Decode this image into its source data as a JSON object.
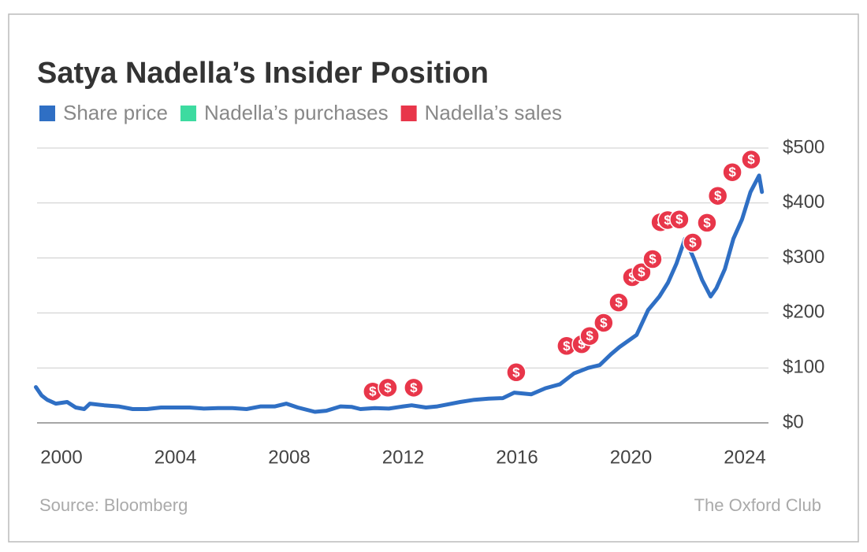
{
  "chart_data": {
    "type": "line",
    "title": "Satya Nadella’s Insider Position",
    "source": "Source: Bloomberg",
    "credit": "The Oxford Club",
    "xlim": [
      1999,
      2025
    ],
    "xticks": [
      2000,
      2004,
      2008,
      2012,
      2016,
      2020,
      2024
    ],
    "ylim": [
      0,
      500
    ],
    "yticks": [
      {
        "value": 0,
        "label": "$0"
      },
      {
        "value": 100,
        "label": "$100"
      },
      {
        "value": 200,
        "label": "$200"
      },
      {
        "value": 300,
        "label": "$300"
      },
      {
        "value": 400,
        "label": "$400"
      },
      {
        "value": 500,
        "label": "$500"
      }
    ],
    "grid": true,
    "series": [
      {
        "name": "Share price",
        "color": "#2f6fc4",
        "x": [
          1999.1,
          1999.3,
          1999.5,
          1999.8,
          2000.2,
          2000.5,
          2000.8,
          2001.0,
          2001.5,
          2002.0,
          2002.5,
          2003.0,
          2003.5,
          2004.0,
          2004.5,
          2005.0,
          2005.5,
          2006.0,
          2006.5,
          2007.0,
          2007.5,
          2007.9,
          2008.3,
          2008.9,
          2009.3,
          2009.8,
          2010.2,
          2010.5,
          2011.0,
          2011.5,
          2012.0,
          2012.3,
          2012.8,
          2013.2,
          2013.6,
          2014.0,
          2014.5,
          2015.0,
          2015.5,
          2015.9,
          2016.5,
          2017.0,
          2017.5,
          2018.0,
          2018.5,
          2018.9,
          2019.3,
          2019.6,
          2020.2,
          2020.6,
          2021.0,
          2021.3,
          2021.6,
          2021.9,
          2022.2,
          2022.5,
          2022.8,
          2023.0,
          2023.3,
          2023.6,
          2023.9,
          2024.2,
          2024.5,
          2024.6
        ],
        "values": [
          65,
          50,
          42,
          35,
          38,
          28,
          25,
          35,
          32,
          30,
          25,
          25,
          28,
          28,
          28,
          26,
          27,
          27,
          25,
          30,
          30,
          35,
          28,
          20,
          22,
          30,
          29,
          25,
          27,
          26,
          30,
          32,
          28,
          30,
          34,
          38,
          42,
          44,
          45,
          55,
          52,
          63,
          70,
          90,
          100,
          105,
          125,
          138,
          160,
          205,
          230,
          255,
          290,
          335,
          300,
          260,
          230,
          245,
          280,
          335,
          370,
          420,
          450,
          420
        ]
      },
      {
        "name": "Nadella’s purchases",
        "color": "#3ddba0",
        "x": [],
        "values": []
      },
      {
        "name": "Nadella’s sales",
        "color": "#e8364a",
        "marker_label": "$",
        "x": [
          2010.93,
          2011.46,
          2012.37,
          2015.97,
          2017.74,
          2018.27,
          2018.55,
          2019.04,
          2019.57,
          2020.04,
          2020.37,
          2020.76,
          2021.04,
          2021.29,
          2021.7,
          2022.17,
          2022.67,
          2023.05,
          2023.56,
          2024.22
        ],
        "values": [
          57,
          64,
          64,
          92,
          140,
          143,
          158,
          182,
          219,
          265,
          274,
          298,
          365,
          369,
          370,
          328,
          364,
          413,
          456,
          479
        ]
      }
    ]
  }
}
